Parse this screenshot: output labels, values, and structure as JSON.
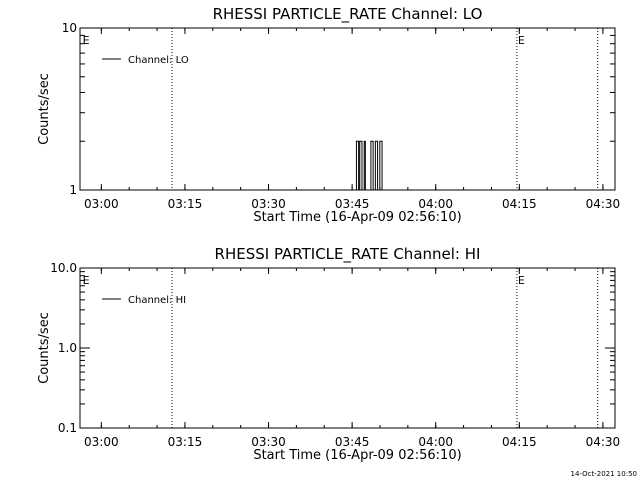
{
  "chart_data": [
    {
      "type": "line",
      "title": "RHESSI PARTICLE_RATE Channel: LO",
      "xlabel": "Start Time (16-Apr-09 02:56:10)",
      "ylabel": "Counts/sec",
      "x_unit": "minutes after 02:56:10",
      "xlim": [
        0,
        96
      ],
      "ylim": [
        1,
        10
      ],
      "yscale": "log",
      "yticks": [
        1,
        10
      ],
      "ytick_labels": [
        "1",
        "10"
      ],
      "xtick_labels": [
        "03:00",
        "03:15",
        "03:30",
        "03:45",
        "04:00",
        "04:15",
        "04:30"
      ],
      "xtick_times": [
        3.83,
        18.83,
        33.83,
        48.83,
        63.83,
        78.83,
        93.83
      ],
      "legend": {
        "position": "top-left",
        "entries": [
          "Channel: LO"
        ]
      },
      "vlines": [
        16.5,
        78.4,
        92.9
      ],
      "markers": [
        {
          "text": "E",
          "x": 0.3
        },
        {
          "text": "E",
          "x": 78.4
        }
      ],
      "grid": false,
      "series": [
        {
          "name": "Channel: LO",
          "x": [
            49.6,
            49.6,
            50.0,
            50.0,
            50.2,
            50.2,
            50.6,
            50.6,
            51.0,
            51.0,
            51.2,
            51.2,
            52.2,
            52.2,
            52.6,
            52.6,
            53.0,
            53.0,
            53.4,
            53.4,
            53.8,
            53.8,
            54.2,
            54.2,
            54.6
          ],
          "y": [
            1,
            2,
            2,
            1,
            1,
            2,
            2,
            1,
            1,
            2,
            2,
            1,
            1,
            2,
            2,
            1,
            1,
            2,
            2,
            1,
            1,
            2,
            2,
            1,
            1
          ]
        }
      ]
    },
    {
      "type": "line",
      "title": "RHESSI PARTICLE_RATE Channel: HI",
      "xlabel": "Start Time (16-Apr-09 02:56:10)",
      "ylabel": "Counts/sec",
      "x_unit": "minutes after 02:56:10",
      "xlim": [
        0,
        96
      ],
      "ylim": [
        0.1,
        10
      ],
      "yscale": "log",
      "yticks": [
        0.1,
        1,
        10
      ],
      "ytick_labels": [
        "0.1",
        "1.0",
        "10.0"
      ],
      "xtick_labels": [
        "03:00",
        "03:15",
        "03:30",
        "03:45",
        "04:00",
        "04:15",
        "04:30"
      ],
      "xtick_times": [
        3.83,
        18.83,
        33.83,
        48.83,
        63.83,
        78.83,
        93.83
      ],
      "legend": {
        "position": "top-left",
        "entries": [
          "Channel: HI"
        ]
      },
      "vlines": [
        16.5,
        78.4,
        92.9
      ],
      "markers": [
        {
          "text": "E",
          "x": 0.3
        },
        {
          "text": "E",
          "x": 78.4
        }
      ],
      "grid": false,
      "series": [
        {
          "name": "Channel: HI",
          "x": [],
          "y": []
        }
      ]
    }
  ],
  "footer": {
    "timestamp": "14-Oct-2021 10:50"
  }
}
